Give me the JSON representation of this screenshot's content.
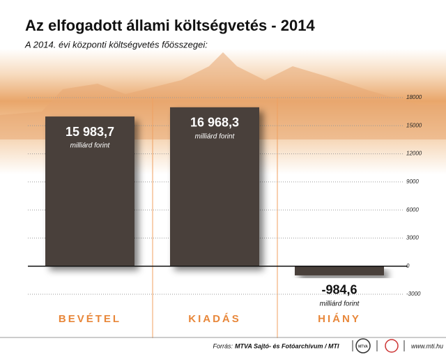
{
  "chart_data": {
    "type": "bar",
    "title": "Az elfogadott állami költségvetés - 2014",
    "subtitle": "A 2014. évi központi költségvetés főösszegei:",
    "categories": [
      "BEVÉTEL",
      "KIADÁS",
      "HIÁNY"
    ],
    "values": [
      15983.7,
      16968.3,
      -984.6
    ],
    "value_labels": [
      "15 983,7",
      "16 968,3",
      "-984,6"
    ],
    "unit": "milliárd forint",
    "color": "#4a3f3a",
    "ylim": [
      -3000,
      18000
    ],
    "yticks": [
      -3000,
      0,
      3000,
      6000,
      9000,
      12000,
      15000,
      18000
    ],
    "grid": true,
    "source_prefix": "Forrás:",
    "source": "MTVA Sajtó- és Fotóarchívum / MTI",
    "logo": "MTVA",
    "website": "www.mti.hu"
  }
}
